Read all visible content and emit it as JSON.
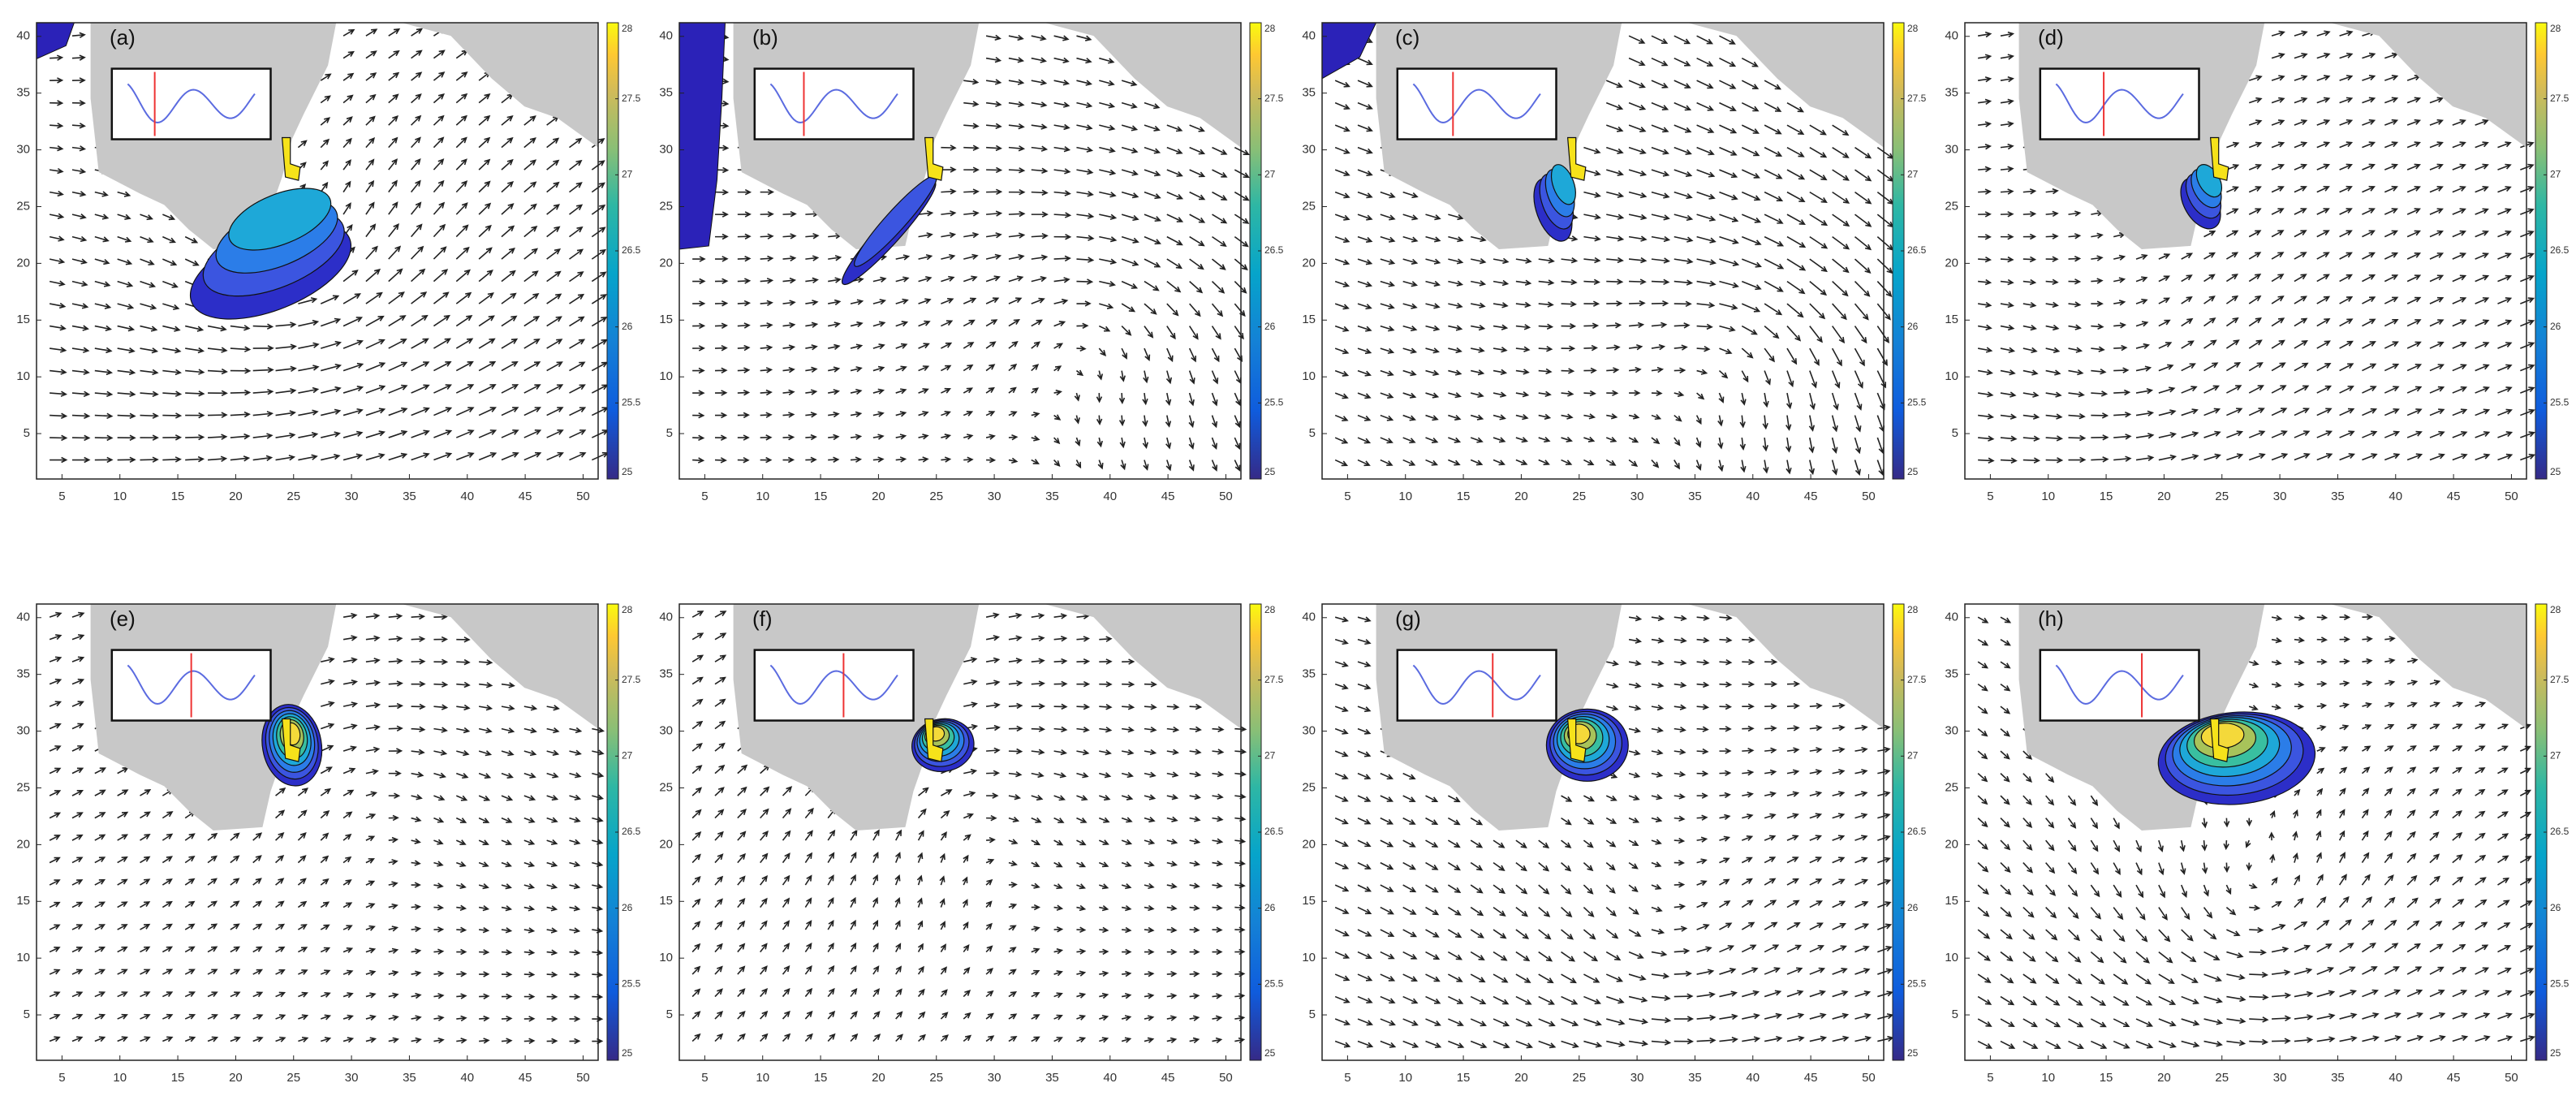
{
  "chart_data": [
    {
      "type": "quiver",
      "title": "(a)",
      "xlim": [
        2.8,
        51.3
      ],
      "ylim": [
        1,
        41.2
      ],
      "xticks": [
        5,
        10,
        15,
        20,
        25,
        30,
        35,
        40,
        45,
        50
      ],
      "yticks": [
        5,
        10,
        15,
        20,
        25,
        30,
        35,
        40
      ],
      "clim": [
        25,
        28
      ],
      "cticks": [
        25,
        25.5,
        26,
        26.5,
        27,
        27.5,
        28
      ]
    },
    {
      "type": "quiver",
      "title": "(b)",
      "xlim": [
        2.8,
        51.3
      ],
      "ylim": [
        1,
        41.2
      ],
      "xticks": [
        5,
        10,
        15,
        20,
        25,
        30,
        35,
        40,
        45,
        50
      ],
      "yticks": [
        5,
        10,
        15,
        20,
        25,
        30,
        35,
        40
      ],
      "clim": [
        25,
        28
      ],
      "cticks": [
        25,
        25.5,
        26,
        26.5,
        27,
        27.5,
        28
      ]
    },
    {
      "type": "quiver",
      "title": "(c)",
      "xlim": [
        2.8,
        51.3
      ],
      "ylim": [
        1,
        41.2
      ],
      "xticks": [
        5,
        10,
        15,
        20,
        25,
        30,
        35,
        40,
        45,
        50
      ],
      "yticks": [
        5,
        10,
        15,
        20,
        25,
        30,
        35,
        40
      ],
      "clim": [
        25,
        28
      ],
      "cticks": [
        25,
        25.5,
        26,
        26.5,
        27,
        27.5,
        28
      ]
    },
    {
      "type": "quiver",
      "title": "(d)",
      "xlim": [
        2.8,
        51.3
      ],
      "ylim": [
        1,
        41.2
      ],
      "xticks": [
        5,
        10,
        15,
        20,
        25,
        30,
        35,
        40,
        45,
        50
      ],
      "yticks": [
        5,
        10,
        15,
        20,
        25,
        30,
        35,
        40
      ],
      "clim": [
        25,
        28
      ],
      "cticks": [
        25,
        25.5,
        26,
        26.5,
        27,
        27.5,
        28
      ]
    },
    {
      "type": "quiver",
      "title": "(e)",
      "xlim": [
        2.8,
        51.3
      ],
      "ylim": [
        1,
        41.2
      ],
      "xticks": [
        5,
        10,
        15,
        20,
        25,
        30,
        35,
        40,
        45,
        50
      ],
      "yticks": [
        5,
        10,
        15,
        20,
        25,
        30,
        35,
        40
      ],
      "clim": [
        25,
        28
      ],
      "cticks": [
        25,
        25.5,
        26,
        26.5,
        27,
        27.5,
        28
      ]
    },
    {
      "type": "quiver",
      "title": "(f)",
      "xlim": [
        2.8,
        51.3
      ],
      "ylim": [
        1,
        41.2
      ],
      "xticks": [
        5,
        10,
        15,
        20,
        25,
        30,
        35,
        40,
        45,
        50
      ],
      "yticks": [
        5,
        10,
        15,
        20,
        25,
        30,
        35,
        40
      ],
      "clim": [
        25,
        28
      ],
      "cticks": [
        25,
        25.5,
        26,
        26.5,
        27,
        27.5,
        28
      ]
    },
    {
      "type": "quiver",
      "title": "(g)",
      "xlim": [
        2.8,
        51.3
      ],
      "ylim": [
        1,
        41.2
      ],
      "xticks": [
        5,
        10,
        15,
        20,
        25,
        30,
        35,
        40,
        45,
        50
      ],
      "yticks": [
        5,
        10,
        15,
        20,
        25,
        30,
        35,
        40
      ],
      "clim": [
        25,
        28
      ],
      "cticks": [
        25,
        25.5,
        26,
        26.5,
        27,
        27.5,
        28
      ]
    },
    {
      "type": "quiver",
      "title": "(h)",
      "xlim": [
        2.8,
        51.3
      ],
      "ylim": [
        1,
        41.2
      ],
      "xticks": [
        5,
        10,
        15,
        20,
        25,
        30,
        35,
        40,
        45,
        50
      ],
      "yticks": [
        5,
        10,
        15,
        20,
        25,
        30,
        35,
        40
      ],
      "clim": [
        25,
        28
      ],
      "cticks": [
        25,
        25.5,
        26,
        26.5,
        27,
        27.5,
        28
      ]
    }
  ]
}
